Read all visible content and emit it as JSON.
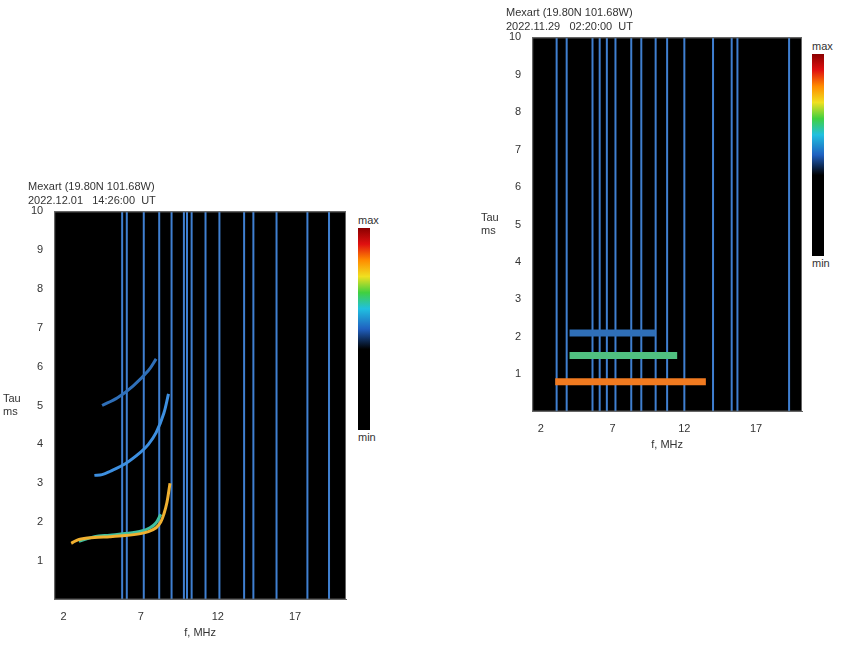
{
  "chart_data": [
    {
      "type": "scatter",
      "title": "Mexart (19.80N 101.68W)",
      "subtitle": "2022.12.01   14:26:00  UT",
      "x_label": "f, MHz",
      "y_label": [
        "Tau",
        "ms"
      ],
      "xlim": [
        1.4,
        20.3
      ],
      "xticks": [
        2,
        7,
        12,
        17
      ],
      "ylim": [
        0,
        10
      ],
      "yticks": [
        1,
        2,
        3,
        4,
        5,
        6,
        7,
        8,
        9,
        10
      ],
      "grid": false,
      "traces": [
        {
          "color": "#f0b030",
          "x": [
            2.5,
            3.0,
            4.0,
            5.0,
            6.0,
            7.0,
            7.5,
            8.0,
            8.3,
            8.5,
            8.7,
            8.9
          ],
          "y": [
            1.45,
            1.55,
            1.6,
            1.62,
            1.65,
            1.7,
            1.75,
            1.85,
            2.0,
            2.2,
            2.5,
            3.0
          ]
        },
        {
          "color": "#40c0a0",
          "x": [
            3.0,
            4.0,
            5.0,
            6.0,
            7.0,
            7.6,
            8.0,
            8.3
          ],
          "y": [
            1.5,
            1.62,
            1.66,
            1.7,
            1.76,
            1.85,
            1.98,
            2.2
          ]
        },
        {
          "color": "#3d8fe0",
          "x": [
            4.0,
            4.5,
            5.0,
            6.0,
            7.0,
            7.5,
            8.0,
            8.5,
            8.8
          ],
          "y": [
            3.2,
            3.22,
            3.3,
            3.5,
            3.8,
            4.0,
            4.3,
            4.8,
            5.3
          ]
        },
        {
          "color": "#2f6fb8",
          "x": [
            4.5,
            5.5,
            6.5,
            7.5,
            8.0
          ],
          "y": [
            5.0,
            5.2,
            5.5,
            5.9,
            6.2
          ]
        }
      ],
      "interference": {
        "color": "#3f7fd0",
        "x": [
          5.8,
          6.1,
          7.2,
          8.2,
          9.0,
          9.8,
          10.0,
          10.3,
          11.2,
          12.1,
          13.7,
          14.3,
          15.8,
          17.8,
          19.2
        ]
      },
      "colorbar": {
        "max_label": "max",
        "min_label": "min"
      }
    },
    {
      "type": "scatter",
      "title": "Mexart (19.80N 101.68W)",
      "subtitle": "2022.11.29   02:20:00  UT",
      "x_label": "f, MHz",
      "y_label": [
        "Tau",
        "ms"
      ],
      "xlim": [
        1.4,
        20.2
      ],
      "xticks": [
        2,
        7,
        12,
        17
      ],
      "ylim": [
        0,
        10
      ],
      "yticks": [
        1,
        2,
        3,
        4,
        5,
        6,
        7,
        8,
        9,
        10
      ],
      "grid": false,
      "traces": [
        {
          "color": "#f07a20",
          "x": [
            3.0,
            5.0,
            7.0,
            9.0,
            11.0,
            13.5
          ],
          "y": [
            0.8,
            0.8,
            0.8,
            0.8,
            0.8,
            0.8
          ]
        },
        {
          "color": "#50c080",
          "x": [
            4.0,
            6.0,
            8.0,
            10.0,
            11.5
          ],
          "y": [
            1.5,
            1.5,
            1.5,
            1.5,
            1.5
          ]
        },
        {
          "color": "#2f6fb8",
          "x": [
            4.0,
            6.0,
            8.0,
            10.0
          ],
          "y": [
            2.1,
            2.1,
            2.1,
            2.1
          ]
        }
      ],
      "interference": {
        "color": "#3f7fd0",
        "x": [
          3.1,
          3.8,
          5.6,
          6.1,
          6.6,
          7.2,
          8.3,
          9.0,
          10.0,
          10.8,
          12.0,
          14.0,
          15.3,
          15.7,
          19.3
        ]
      },
      "colorbar": {
        "max_label": "max",
        "min_label": "min"
      }
    }
  ]
}
